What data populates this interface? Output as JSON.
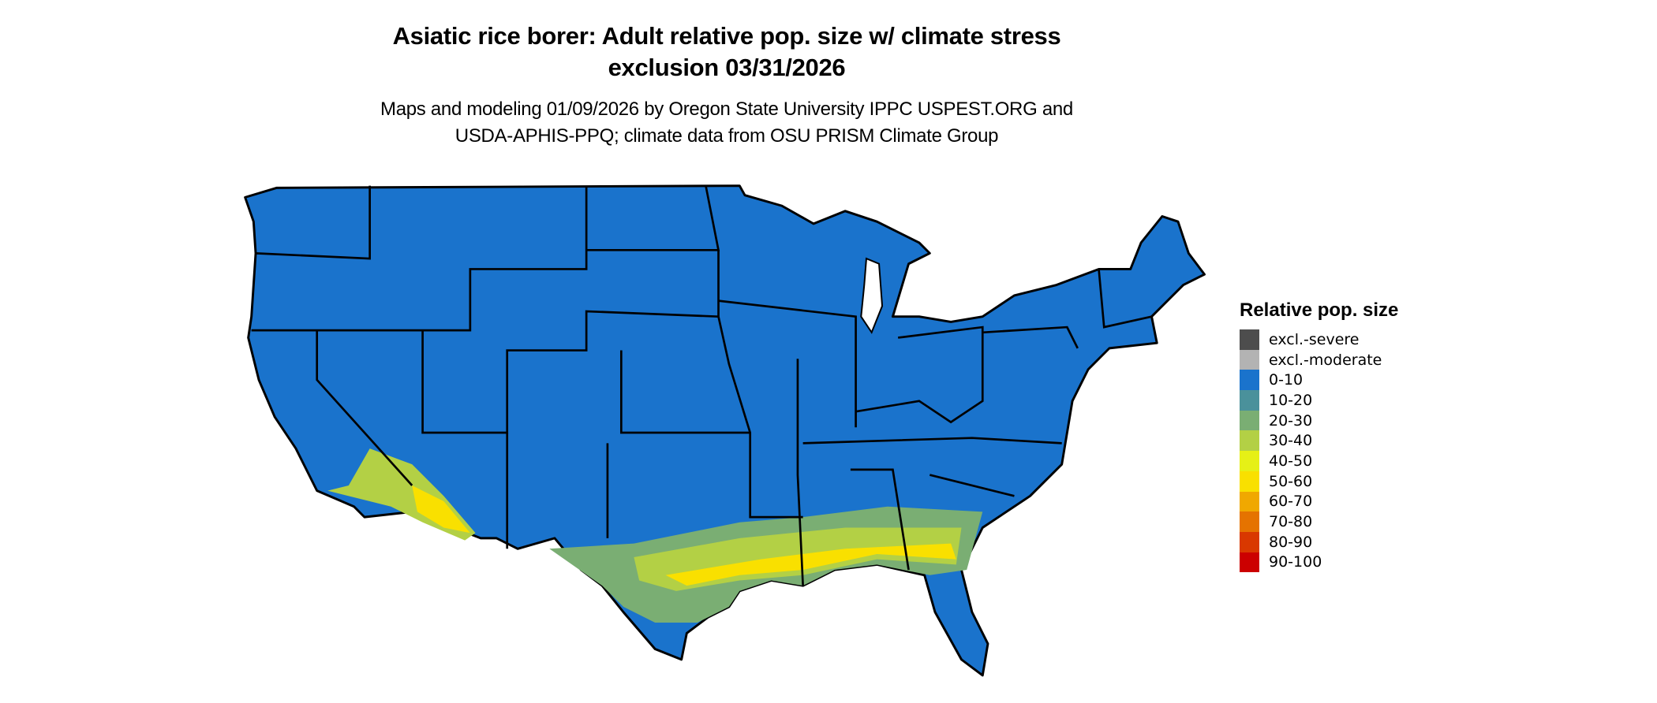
{
  "title": {
    "line1": "Asiatic rice borer: Adult relative pop. size w/ climate stress",
    "line2": "exclusion 03/31/2026"
  },
  "subtitle": {
    "line1": "Maps and modeling 01/09/2026 by Oregon State University IPPC USPEST.ORG and",
    "line2": "USDA-APHIS-PPQ; climate data from OSU PRISM Climate Group"
  },
  "legend": {
    "title": "Relative pop. size",
    "items": [
      {
        "label": "excl.-severe",
        "color": "#4d4d4d"
      },
      {
        "label": "excl.-moderate",
        "color": "#b3b3b3"
      },
      {
        "label": "0-10",
        "color": "#1a73cc"
      },
      {
        "label": "10-20",
        "color": "#4a919b"
      },
      {
        "label": "20-30",
        "color": "#7aae73"
      },
      {
        "label": "30-40",
        "color": "#b3d045"
      },
      {
        "label": "40-50",
        "color": "#e6f016"
      },
      {
        "label": "50-60",
        "color": "#f9e000"
      },
      {
        "label": "60-70",
        "color": "#f0a800"
      },
      {
        "label": "70-80",
        "color": "#e57300"
      },
      {
        "label": "80-90",
        "color": "#d93800"
      },
      {
        "label": "90-100",
        "color": "#cc0000"
      }
    ]
  },
  "map": {
    "region": "contiguous-united-states",
    "base_color": "#1a73cc",
    "border_color": "#000000"
  }
}
